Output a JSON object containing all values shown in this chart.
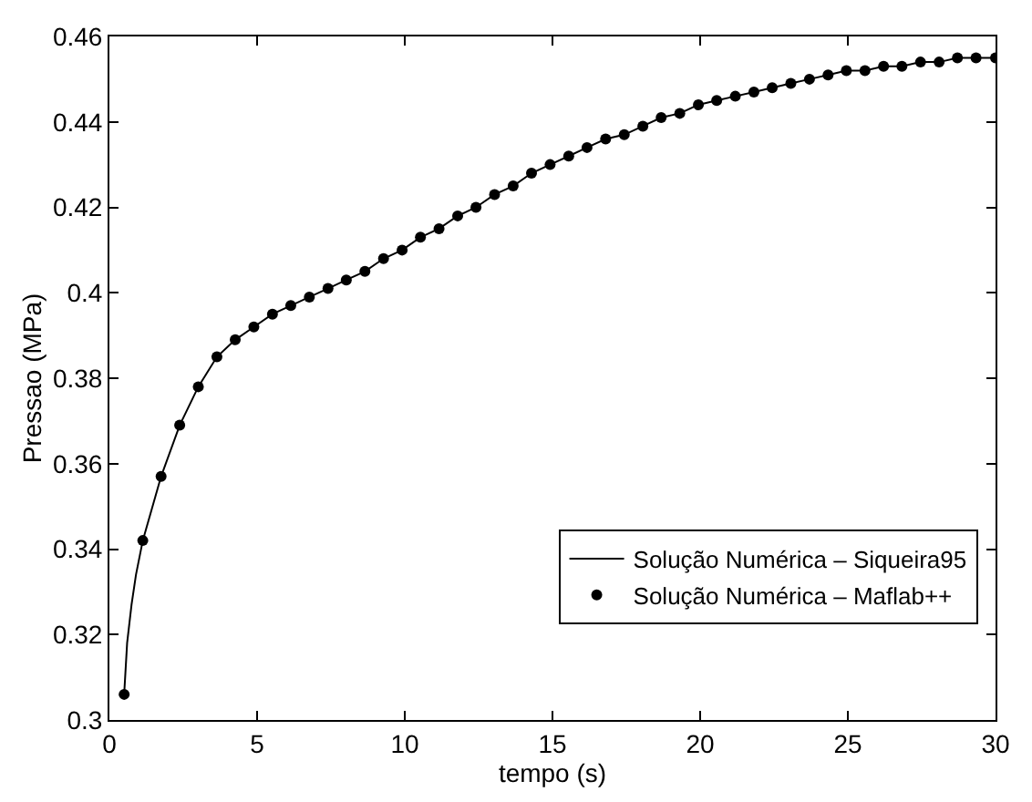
{
  "chart_data": {
    "type": "line",
    "xlabel": "tempo (s)",
    "ylabel": "Pressao (MPa)",
    "xlim": [
      0,
      30
    ],
    "xticks": [
      0,
      5,
      10,
      15,
      20,
      25,
      30
    ],
    "ylim": [
      0.3,
      0.46
    ],
    "yticks": [
      0.3,
      0.32,
      0.34,
      0.36,
      0.38,
      0.4,
      0.42,
      0.44,
      0.46
    ],
    "grid": false,
    "legend": "bottom right",
    "series": [
      {
        "name": "Solução Numérica – Siqueira95",
        "color": "#000000",
        "marker": "none",
        "line_style": "solid",
        "x": [
          0.5,
          0.6,
          0.75,
          0.9,
          1.13,
          1.75,
          2.38,
          3.01,
          3.64,
          4.26,
          4.89,
          5.52,
          6.14,
          6.77,
          7.4,
          8.02,
          8.65,
          9.28,
          9.91,
          10.53,
          11.16,
          11.79,
          12.41,
          13.04,
          13.67,
          14.29,
          14.92,
          15.55,
          16.17,
          16.8,
          17.43,
          18.06,
          18.68,
          19.31,
          19.94,
          20.56,
          21.19,
          21.82,
          22.44,
          23.07,
          23.7,
          24.33,
          24.95,
          25.58,
          26.21,
          26.83,
          27.46,
          28.09,
          28.71,
          29.34,
          30.0
        ],
        "values": [
          0.306,
          0.318,
          0.327,
          0.334,
          0.342,
          0.357,
          0.369,
          0.378,
          0.385,
          0.389,
          0.392,
          0.395,
          0.397,
          0.399,
          0.401,
          0.403,
          0.405,
          0.408,
          0.41,
          0.413,
          0.415,
          0.418,
          0.42,
          0.423,
          0.425,
          0.428,
          0.43,
          0.432,
          0.434,
          0.436,
          0.437,
          0.439,
          0.441,
          0.442,
          0.444,
          0.445,
          0.446,
          0.447,
          0.448,
          0.449,
          0.45,
          0.451,
          0.452,
          0.452,
          0.453,
          0.453,
          0.454,
          0.454,
          0.455,
          0.455,
          0.455
        ]
      },
      {
        "name": "Solução Numérica – Maflab++",
        "type": "scatter",
        "color": "#000000",
        "marker": "circle",
        "x": [
          0.5,
          1.13,
          1.75,
          2.38,
          3.01,
          3.64,
          4.26,
          4.89,
          5.52,
          6.14,
          6.77,
          7.4,
          8.02,
          8.65,
          9.28,
          9.91,
          10.53,
          11.16,
          11.79,
          12.41,
          13.04,
          13.67,
          14.29,
          14.92,
          15.55,
          16.17,
          16.8,
          17.43,
          18.06,
          18.68,
          19.31,
          19.94,
          20.56,
          21.19,
          21.82,
          22.44,
          23.07,
          23.7,
          24.33,
          24.95,
          25.58,
          26.21,
          26.83,
          27.46,
          28.09,
          28.71,
          29.34,
          30.0
        ],
        "values": [
          0.306,
          0.342,
          0.357,
          0.369,
          0.378,
          0.385,
          0.389,
          0.392,
          0.395,
          0.397,
          0.399,
          0.401,
          0.403,
          0.405,
          0.408,
          0.41,
          0.413,
          0.415,
          0.418,
          0.42,
          0.423,
          0.425,
          0.428,
          0.43,
          0.432,
          0.434,
          0.436,
          0.437,
          0.439,
          0.441,
          0.442,
          0.444,
          0.445,
          0.446,
          0.447,
          0.448,
          0.449,
          0.45,
          0.451,
          0.452,
          0.452,
          0.453,
          0.453,
          0.454,
          0.454,
          0.455,
          0.455,
          0.455
        ]
      }
    ]
  }
}
